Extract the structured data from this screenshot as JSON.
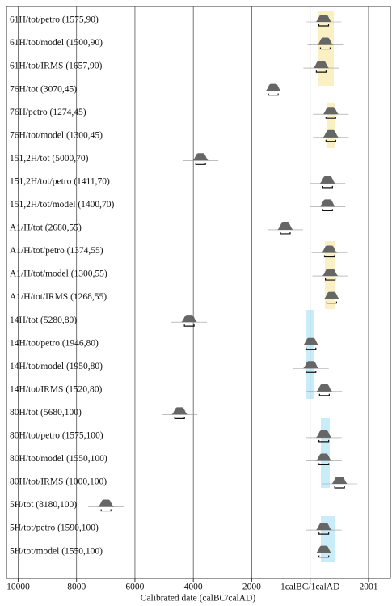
{
  "chart_data": {
    "type": "multiplot",
    "x_label": "Calibrated date (calBC/calAD)",
    "categories": [
      "61H/tot/petro (1575,90)",
      "61H/tot/model (1500,90)",
      "61H/tot/IRMS (1657,90)",
      "76H/tot (3070,45)",
      "76H/petro (1274,45)",
      "76H/tot/model (1300,45)",
      "151,2H/tot (5000,70)",
      "151,2H/tot/petro (1411,70)",
      "151,2H/tot/model (1400,70)",
      "A1/H/tot (2680,55)",
      "A1/H/tot/petro (1374,55)",
      "A1/H/tot/model (1300,55)",
      "A1/H/tot/IRMS (1268,55)",
      "14H/tot (5280,80)",
      "14H/tot/petro (1946,80)",
      "14H/tot/model (1950,80)",
      "14H/tot/IRMS (1520,80)",
      "80H/tot (5680,100)",
      "80H/tot/petro (1575,100)",
      "80H/tot/model (1550,100)",
      "80H/tot/IRMS (1000,100)",
      "5H/tot (8180,100)",
      "5H/tot/petro (1590,100)",
      "5H/tot/model (1550,100)"
    ],
    "values": [
      466,
      520,
      380,
      -1260,
      710,
      710,
      -3750,
      600,
      600,
      -850,
      660,
      690,
      740,
      -4140,
      30,
      30,
      490,
      -4470,
      470,
      470,
      1010,
      -6990,
      470,
      470
    ],
    "xlim": [
      -10400,
      2750
    ],
    "xticks": [
      {
        "value": -10000,
        "label": "10000"
      },
      {
        "value": -8000,
        "label": "8000"
      },
      {
        "value": -6000,
        "label": "6000"
      },
      {
        "value": -4000,
        "label": "4000"
      },
      {
        "value": -2000,
        "label": "2000"
      },
      {
        "value": 0,
        "label": "1calBC/1calAD"
      },
      2001
    ],
    "color": "#666666",
    "grid": true
  }
}
